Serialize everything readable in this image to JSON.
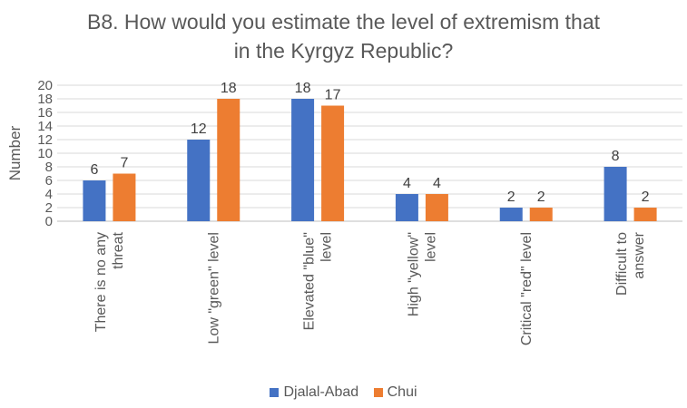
{
  "chart_data": {
    "type": "bar",
    "title_lines": [
      "B8. How would you estimate the level of extremism that",
      "in the Kyrgyz Republic?"
    ],
    "xlabel": "",
    "ylabel": "Number",
    "ylim": [
      0,
      20
    ],
    "yticks": [
      0,
      2,
      4,
      6,
      8,
      10,
      12,
      14,
      16,
      18,
      20
    ],
    "grid": true,
    "legend_position": "bottom",
    "categories": [
      [
        "There is no any",
        "threat"
      ],
      [
        "Low \"green\" level"
      ],
      [
        "Elevated \"blue\"",
        "level"
      ],
      [
        "High \"yellow\"",
        "level"
      ],
      [
        "Critical \"red\" level"
      ],
      [
        "Difficult to",
        "answer"
      ]
    ],
    "series": [
      {
        "name": "Djalal-Abad",
        "color": "#4472C4",
        "values": [
          6,
          12,
          18,
          4,
          2,
          8
        ]
      },
      {
        "name": "Chui",
        "color": "#ED7D31",
        "values": [
          7,
          18,
          17,
          4,
          2,
          2
        ]
      }
    ]
  }
}
